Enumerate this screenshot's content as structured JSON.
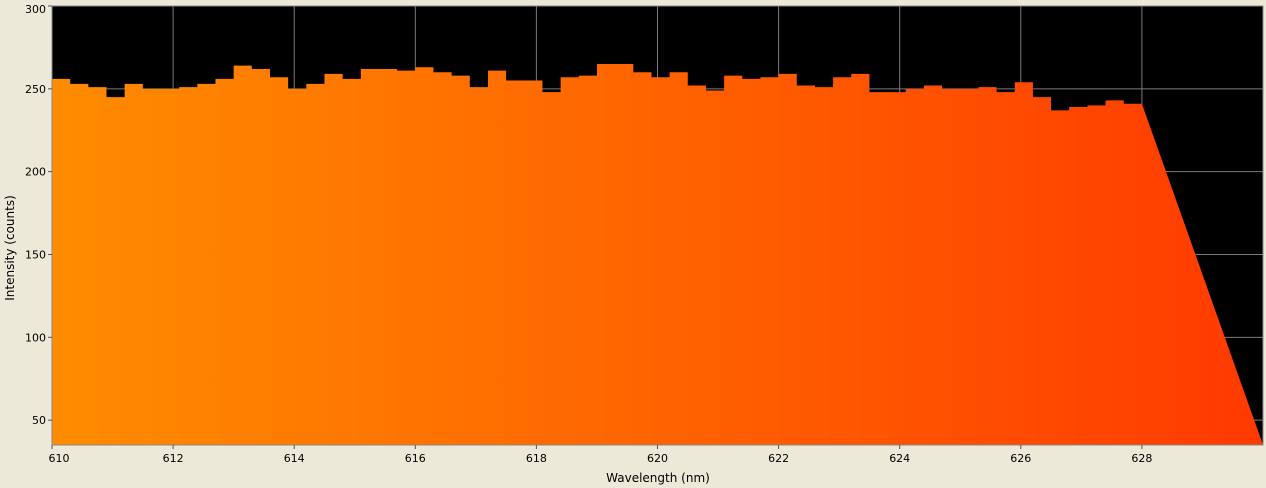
{
  "chart_data": {
    "type": "area",
    "xlabel": "Wavelength (nm)",
    "ylabel": "Intensity (counts)",
    "xlim": [
      610,
      630
    ],
    "ylim": [
      35,
      300
    ],
    "x_ticks": [
      610,
      612,
      614,
      616,
      618,
      620,
      622,
      624,
      626,
      628
    ],
    "y_ticks": [
      50,
      100,
      150,
      200,
      250,
      300
    ],
    "grid": true,
    "plot_background": "#000000",
    "gradient_colors": [
      "#ff8c00",
      "#ff3a00"
    ],
    "gridline_color": "#7a7a7a",
    "x_step": 0.3,
    "x_start": 610,
    "values": [
      256,
      253,
      251,
      245,
      253,
      250,
      250,
      251,
      253,
      256,
      264,
      262,
      257,
      250,
      253,
      259,
      256,
      262,
      262,
      261,
      263,
      260,
      258,
      251,
      261,
      255,
      255,
      248,
      257,
      258,
      265,
      265,
      260,
      257,
      260,
      252,
      249,
      258,
      256,
      257,
      259,
      252,
      251,
      257,
      259,
      248,
      248,
      250,
      252,
      250,
      250,
      251,
      248,
      254,
      245,
      237,
      239,
      240,
      243,
      241
    ]
  }
}
